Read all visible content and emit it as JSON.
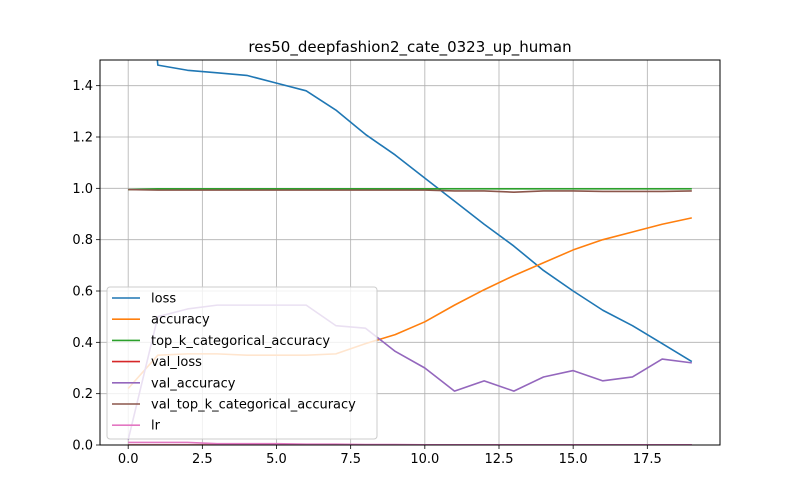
{
  "chart_data": {
    "type": "line",
    "title": "res50_deepfashion2_cate_0323_up_human",
    "xlabel": "",
    "ylabel": "",
    "xlim": [
      -0.95,
      19.95
    ],
    "ylim": [
      0.0,
      1.5
    ],
    "grid": true,
    "legend_position": "lower-left",
    "x_ticks": [
      0,
      2.5,
      5,
      7.5,
      10,
      12.5,
      15,
      17.5
    ],
    "x_tick_labels": [
      "0.0",
      "2.5",
      "5.0",
      "7.5",
      "10.0",
      "12.5",
      "15.0",
      "17.5"
    ],
    "y_ticks": [
      0,
      0.2,
      0.4,
      0.6,
      0.8,
      1.0,
      1.2,
      1.4
    ],
    "y_tick_labels": [
      "0.0",
      "0.2",
      "0.4",
      "0.6",
      "0.8",
      "1.0",
      "1.2",
      "1.4"
    ],
    "x": [
      0,
      1,
      2,
      3,
      4,
      5,
      6,
      7,
      8,
      9,
      10,
      11,
      12,
      13,
      14,
      15,
      16,
      17,
      18,
      19
    ],
    "series": [
      {
        "name": "loss",
        "color": "#1f77b4",
        "values": [
          2.6,
          1.48,
          1.46,
          1.45,
          1.44,
          1.41,
          1.38,
          1.305,
          1.21,
          1.13,
          1.04,
          0.95,
          0.86,
          0.775,
          0.68,
          0.6,
          0.525,
          0.465,
          0.395,
          0.325
        ]
      },
      {
        "name": "accuracy",
        "color": "#ff7f0e",
        "values": [
          0.22,
          0.35,
          0.355,
          0.355,
          0.35,
          0.35,
          0.35,
          0.355,
          0.395,
          0.43,
          0.48,
          0.545,
          0.605,
          0.66,
          0.71,
          0.76,
          0.8,
          0.83,
          0.86,
          0.885
        ]
      },
      {
        "name": "top_k_categorical_accuracy",
        "color": "#2ca02c",
        "values": [
          0.995,
          0.998,
          0.998,
          0.998,
          0.998,
          0.998,
          0.998,
          0.998,
          0.998,
          0.998,
          0.998,
          0.998,
          0.998,
          0.998,
          0.998,
          0.998,
          0.998,
          0.998,
          0.998,
          0.998
        ]
      },
      {
        "name": "val_loss",
        "color": "#d62728",
        "values": [
          0.0,
          0.0,
          0.0,
          0.0,
          0.0,
          0.0,
          0.0,
          0.0,
          0.0,
          0.0,
          0.0,
          0.0,
          0.0,
          0.0,
          0.0,
          0.0,
          0.0,
          0.0,
          0.0,
          0.0
        ]
      },
      {
        "name": "val_accuracy",
        "color": "#9467bd",
        "values": [
          0.02,
          0.5,
          0.53,
          0.545,
          0.545,
          0.545,
          0.545,
          0.465,
          0.455,
          0.365,
          0.3,
          0.21,
          0.25,
          0.21,
          0.265,
          0.29,
          0.25,
          0.265,
          0.335,
          0.32
        ]
      },
      {
        "name": "val_top_k_categorical_accuracy",
        "color": "#8c564b",
        "values": [
          0.995,
          0.993,
          0.993,
          0.993,
          0.993,
          0.993,
          0.993,
          0.993,
          0.993,
          0.993,
          0.993,
          0.99,
          0.99,
          0.985,
          0.99,
          0.99,
          0.988,
          0.988,
          0.988,
          0.99
        ]
      },
      {
        "name": "lr",
        "color": "#e377c2",
        "values": [
          0.01,
          0.01,
          0.01,
          0.005,
          0.005,
          0.005,
          0.003,
          0.003,
          0.002,
          0.002,
          0.001,
          0.001,
          0.001,
          0.001,
          0.001,
          0.001,
          0.001,
          0.001,
          0.001,
          0.001
        ]
      }
    ]
  }
}
